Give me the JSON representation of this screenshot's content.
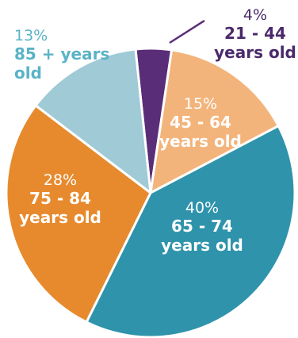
{
  "chart_data": {
    "type": "pie",
    "start_angle_deg": 354,
    "direction": "clockwise",
    "slices": [
      {
        "percent_label": "4%",
        "category": [
          "21 - 44",
          "years old"
        ],
        "value": 4,
        "color": "#5a2d78",
        "text_color": "#4a2a6a"
      },
      {
        "percent_label": "15%",
        "category": [
          "45 - 64",
          "years old"
        ],
        "value": 15,
        "color": "#f3b47b",
        "text_color": "#ffffff"
      },
      {
        "percent_label": "40%",
        "category": [
          "65 - 74",
          "years old"
        ],
        "value": 40,
        "color": "#2e93ab",
        "text_color": "#ffffff"
      },
      {
        "percent_label": "28%",
        "category": [
          "75 - 84",
          "years old"
        ],
        "value": 28,
        "color": "#e78a2e",
        "text_color": "#ffffff"
      },
      {
        "percent_label": "13%",
        "category": [
          "85 + years",
          "old"
        ],
        "value": 13,
        "color": "#9fcad6",
        "text_color": "#5ab3c6"
      }
    ]
  }
}
